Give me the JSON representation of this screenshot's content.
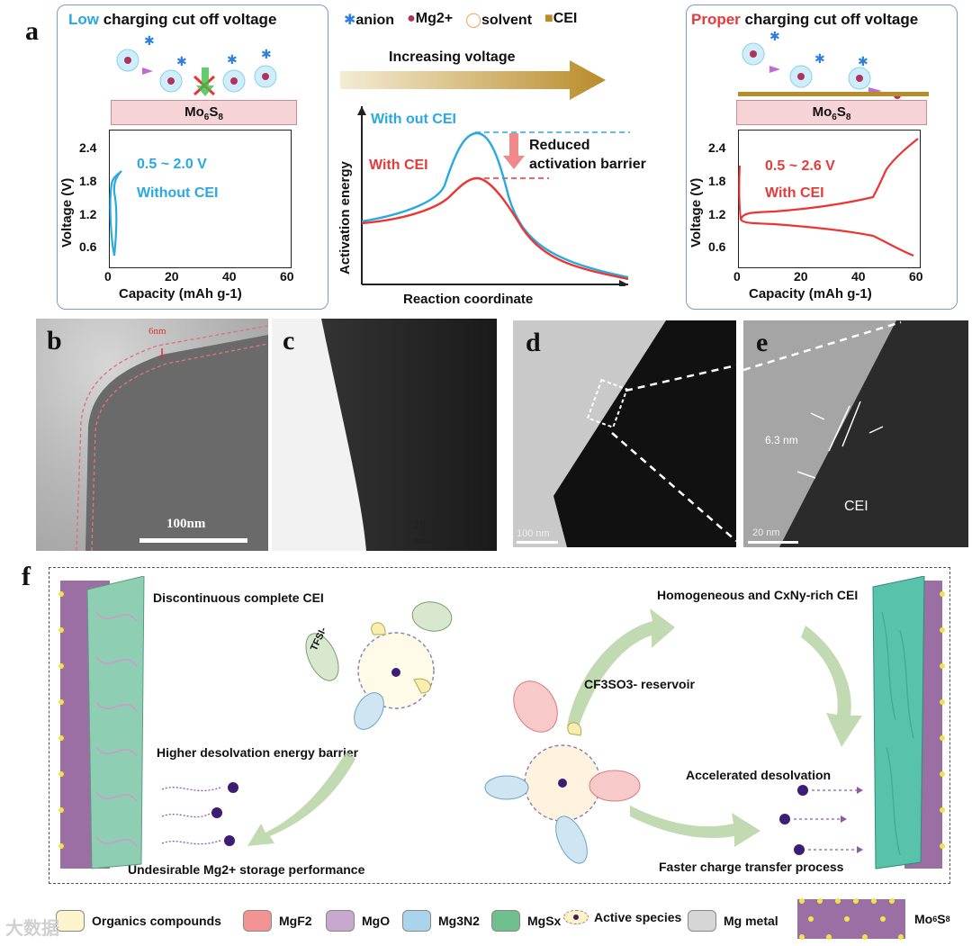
{
  "panel_labels": {
    "a": "a",
    "b": "b",
    "c": "c",
    "d": "d",
    "e": "e",
    "f": "f"
  },
  "a_left": {
    "title_highlight": "Low",
    "title_rest": " charging cut off voltage",
    "electrode": "Mo6S8",
    "range": "0.5 ~ 2.0 V",
    "condition": "Without CEI",
    "xlabel": "Capacity (mAh g-1)",
    "ylabel": "Voltage (V)",
    "yticks": [
      "2.4",
      "1.8",
      "1.2",
      "0.6"
    ],
    "xticks": [
      "0",
      "20",
      "40",
      "60"
    ]
  },
  "a_mid": {
    "legend": {
      "anion": "anion",
      "mg": "Mg2+",
      "solvent": "solvent",
      "cei": "CEI"
    },
    "arrow_label": "Increasing voltage",
    "without_cei": "With out CEI",
    "with_cei": "With CEI",
    "reduced_1": "Reduced",
    "reduced_2": "activation barrier",
    "ylabel": "Activation energy",
    "xlabel": "Reaction coordinate"
  },
  "a_right": {
    "title_highlight": "Proper",
    "title_rest": " charging cut off voltage",
    "electrode": "Mo6S8",
    "range": "0.5 ~ 2.6 V",
    "condition": "With CEI",
    "xlabel": "Capacity (mAh g-1)",
    "ylabel": "Voltage (V)",
    "yticks": [
      "2.4",
      "1.8",
      "1.2",
      "0.6"
    ],
    "xticks": [
      "0",
      "20",
      "40",
      "60"
    ]
  },
  "b": {
    "thickness": "6nm",
    "scale": "100nm"
  },
  "c": {
    "scale": "20nm"
  },
  "d": {
    "scale": "100 nm"
  },
  "e": {
    "thickness": "6.3 nm",
    "cei": "CEI",
    "scale": "20 nm"
  },
  "f": {
    "left_top": "Discontinuous complete CEI",
    "tfsi": "TFSI-",
    "barrier": "Higher desolvation energy barrier",
    "left_bottom": "Undesirable Mg2+ storage performance",
    "right_top": "Homogeneous and CxNy-rich CEI",
    "reservoir": "CF3SO3- reservoir",
    "accelerated": "Accelerated desolvation",
    "right_bottom": "Faster charge transfer process"
  },
  "legend": {
    "organics": "Organics compounds",
    "mgf2": "MgF2",
    "mgo": "MgO",
    "mg3n2": "Mg3N2",
    "mgsx": "MgSx",
    "active": "Active species",
    "mgmetal": "Mg metal",
    "mo6s8": "Mo6S8"
  },
  "watermark": "大数据"
}
